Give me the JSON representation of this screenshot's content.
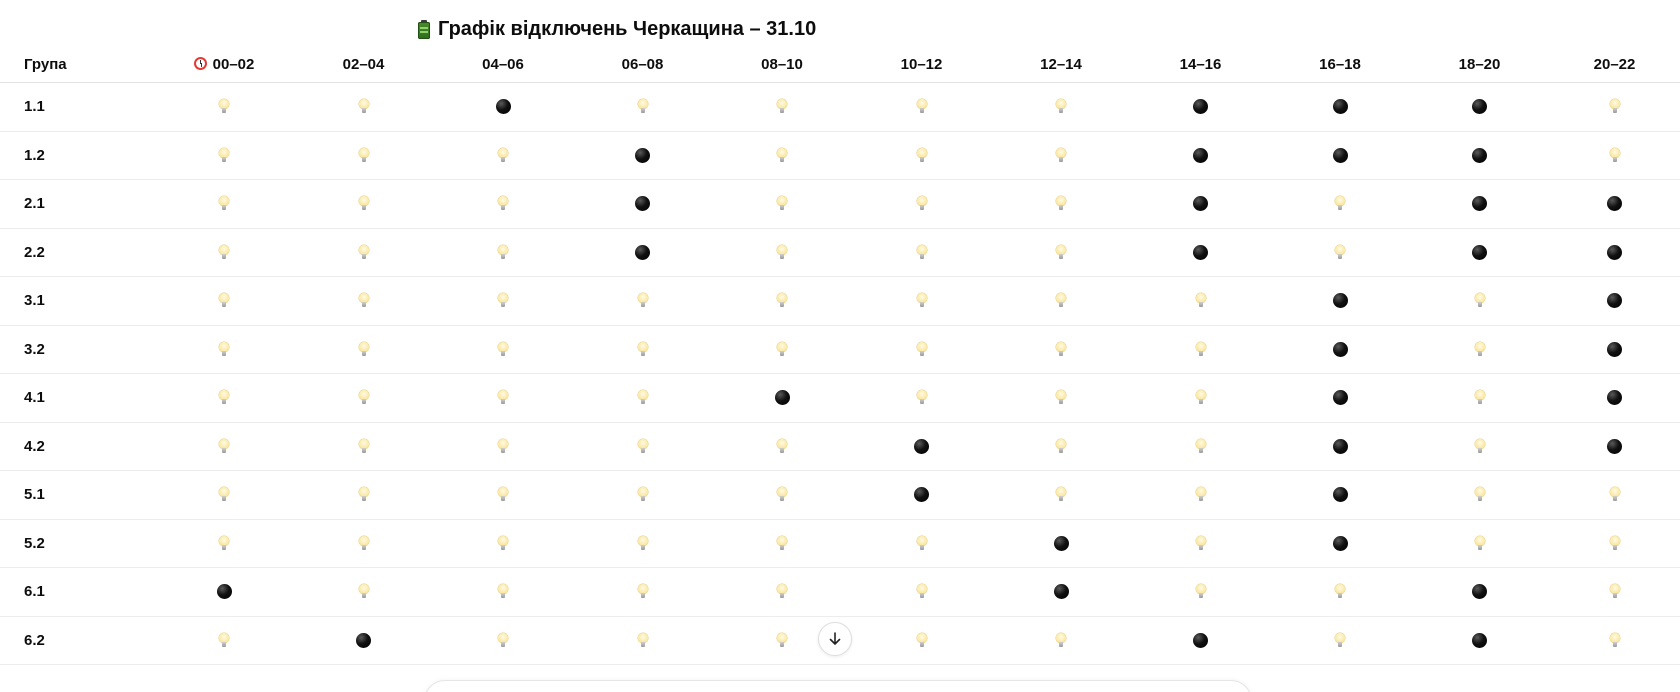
{
  "title": "Графік відключень Черкащина – 31.10",
  "title_icon": "battery-icon",
  "table": {
    "group_header": "Група",
    "time_header_icon": "alarm-clock-icon",
    "time_slots": [
      "00–02",
      "02–04",
      "04–06",
      "06–08",
      "08–10",
      "10–12",
      "12–14",
      "14–16",
      "16–18",
      "18–20",
      "20–22"
    ],
    "legend_icons": {
      "on": "light-bulb-icon",
      "off": "black-circle-icon"
    },
    "rows": [
      {
        "group": "1.1",
        "slots": [
          "on",
          "on",
          "off",
          "on",
          "on",
          "on",
          "on",
          "off",
          "off",
          "off",
          "on"
        ]
      },
      {
        "group": "1.2",
        "slots": [
          "on",
          "on",
          "on",
          "off",
          "on",
          "on",
          "on",
          "off",
          "off",
          "off",
          "on"
        ]
      },
      {
        "group": "2.1",
        "slots": [
          "on",
          "on",
          "on",
          "off",
          "on",
          "on",
          "on",
          "off",
          "on",
          "off",
          "off"
        ]
      },
      {
        "group": "2.2",
        "slots": [
          "on",
          "on",
          "on",
          "off",
          "on",
          "on",
          "on",
          "off",
          "on",
          "off",
          "off"
        ]
      },
      {
        "group": "3.1",
        "slots": [
          "on",
          "on",
          "on",
          "on",
          "on",
          "on",
          "on",
          "on",
          "off",
          "on",
          "off"
        ]
      },
      {
        "group": "3.2",
        "slots": [
          "on",
          "on",
          "on",
          "on",
          "on",
          "on",
          "on",
          "on",
          "off",
          "on",
          "off"
        ]
      },
      {
        "group": "4.1",
        "slots": [
          "on",
          "on",
          "on",
          "on",
          "off",
          "on",
          "on",
          "on",
          "off",
          "on",
          "off"
        ]
      },
      {
        "group": "4.2",
        "slots": [
          "on",
          "on",
          "on",
          "on",
          "on",
          "off",
          "on",
          "on",
          "off",
          "on",
          "off"
        ]
      },
      {
        "group": "5.1",
        "slots": [
          "on",
          "on",
          "on",
          "on",
          "on",
          "off",
          "on",
          "on",
          "off",
          "on",
          "on"
        ]
      },
      {
        "group": "5.2",
        "slots": [
          "on",
          "on",
          "on",
          "on",
          "on",
          "on",
          "off",
          "on",
          "off",
          "on",
          "on"
        ]
      },
      {
        "group": "6.1",
        "slots": [
          "off",
          "on",
          "on",
          "on",
          "on",
          "on",
          "off",
          "on",
          "on",
          "off",
          "on"
        ]
      },
      {
        "group": "6.2",
        "slots": [
          "on",
          "off",
          "on",
          "on",
          "on",
          "on",
          "on",
          "off",
          "on",
          "off",
          "on"
        ]
      }
    ]
  },
  "scroll_button_icon": "arrow-down-icon"
}
